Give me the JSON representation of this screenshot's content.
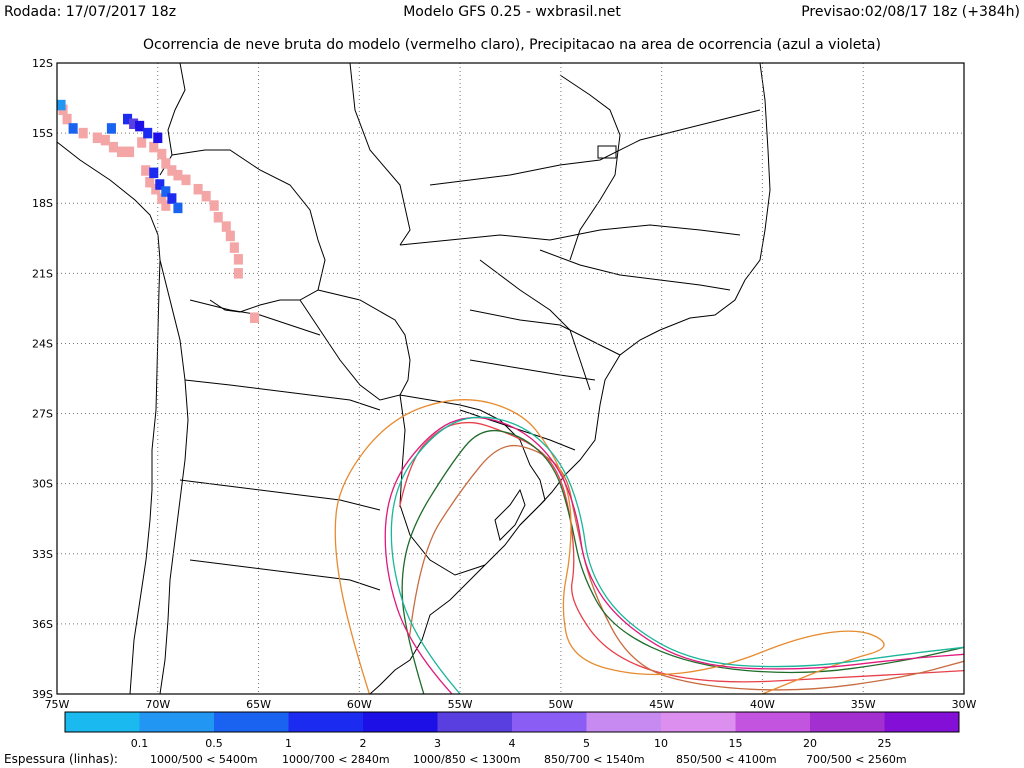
{
  "header": {
    "left": "Rodada: 17/07/2017 18z",
    "center": "Modelo GFS 0.25 - wxbrasil.net",
    "right": "Previsao:02/08/17 18z (+384h)"
  },
  "subtitle": "Ocorrencia de neve bruta do modelo (vermelho claro), Precipitacao na area de ocorrencia (azul a violeta)",
  "chart_data": {
    "type": "heatmap",
    "map": "South America (Southern Cone)",
    "lon_range": [
      -75,
      -30
    ],
    "lat_range": [
      -39,
      -12
    ],
    "lat_ticks": [
      "12S",
      "15S",
      "18S",
      "21S",
      "24S",
      "27S",
      "30S",
      "33S",
      "36S",
      "39S"
    ],
    "lon_ticks": [
      "75W",
      "70W",
      "65W",
      "60W",
      "55W",
      "50W",
      "45W",
      "40W",
      "35W",
      "30W"
    ],
    "grid": true,
    "snow_color": "#f4a6a6",
    "snow_cells": [
      [
        -74.7,
        -14.0
      ],
      [
        -74.5,
        -14.4
      ],
      [
        -73.7,
        -15.0
      ],
      [
        -73.0,
        -15.2
      ],
      [
        -72.6,
        -15.3
      ],
      [
        -72.2,
        -15.6
      ],
      [
        -71.8,
        -15.8
      ],
      [
        -71.4,
        -15.8
      ],
      [
        -70.8,
        -15.4
      ],
      [
        -70.2,
        -15.6
      ],
      [
        -69.8,
        -15.9
      ],
      [
        -69.6,
        -16.3
      ],
      [
        -69.3,
        -16.6
      ],
      [
        -69.0,
        -16.8
      ],
      [
        -68.6,
        -17.0
      ],
      [
        -68.0,
        -17.4
      ],
      [
        -67.6,
        -17.7
      ],
      [
        -67.2,
        -18.1
      ],
      [
        -67.0,
        -18.6
      ],
      [
        -66.6,
        -19.0
      ],
      [
        -66.4,
        -19.4
      ],
      [
        -66.2,
        -19.9
      ],
      [
        -66.0,
        -20.4
      ],
      [
        -66.0,
        -21.0
      ],
      [
        -65.2,
        -22.9
      ],
      [
        -70.6,
        -16.6
      ],
      [
        -70.4,
        -17.1
      ],
      [
        -70.1,
        -17.4
      ],
      [
        -69.8,
        -17.8
      ],
      [
        -69.6,
        -18.1
      ]
    ],
    "precip_cells": [
      {
        "lon": -74.8,
        "lat": -13.8,
        "level": 1
      },
      {
        "lon": -74.2,
        "lat": -14.8,
        "level": 2
      },
      {
        "lon": -72.3,
        "lat": -14.8,
        "level": 2
      },
      {
        "lon": -71.5,
        "lat": -14.4,
        "level": 3
      },
      {
        "lon": -71.2,
        "lat": -14.6,
        "level": 5
      },
      {
        "lon": -70.9,
        "lat": -14.7,
        "level": 4
      },
      {
        "lon": -70.5,
        "lat": -15.0,
        "level": 3
      },
      {
        "lon": -70.0,
        "lat": -15.2,
        "level": 4
      },
      {
        "lon": -70.2,
        "lat": -16.7,
        "level": 3
      },
      {
        "lon": -69.9,
        "lat": -17.2,
        "level": 3
      },
      {
        "lon": -69.6,
        "lat": -17.5,
        "level": 2
      },
      {
        "lon": -69.3,
        "lat": -17.8,
        "level": 3
      },
      {
        "lon": -69.0,
        "lat": -18.2,
        "level": 2
      }
    ],
    "thickness_contours": [
      {
        "label": "1000/500 < 5400m",
        "color": "#e8404a",
        "points": [
          [
            -58,
            -31
          ],
          [
            -57.5,
            -29
          ],
          [
            -56,
            -27.6
          ],
          [
            -54.5,
            -27.3
          ],
          [
            -53,
            -27.7
          ],
          [
            -51,
            -28.5
          ],
          [
            -50,
            -29.7
          ],
          [
            -49.5,
            -31.5
          ],
          [
            -49.3,
            -33.5
          ],
          [
            -49.6,
            -35
          ],
          [
            -47.5,
            -37.5
          ],
          [
            -43,
            -38.6
          ],
          [
            -36,
            -38.3
          ],
          [
            -30,
            -38.0
          ]
        ]
      },
      {
        "label": "1000/700 < 2840m",
        "color": "#c86b40",
        "points": [
          [
            -57.5,
            -36.5
          ],
          [
            -57,
            -33
          ],
          [
            -55,
            -30.3
          ],
          [
            -53,
            -28.2
          ],
          [
            -51,
            -28.6
          ],
          [
            -49.7,
            -29.6
          ],
          [
            -49.3,
            -31.5
          ],
          [
            -48.5,
            -34.5
          ],
          [
            -46.5,
            -37.8
          ],
          [
            -43,
            -38.7
          ],
          [
            -38,
            -38.9
          ],
          [
            -33,
            -38.3
          ],
          [
            -30,
            -37.6
          ]
        ]
      },
      {
        "label": "1000/850 < 1300m",
        "color": "#1f6b2a",
        "points": [
          [
            -56.8,
            -39.0
          ],
          [
            -57.5,
            -37
          ],
          [
            -58,
            -34.5
          ],
          [
            -57.5,
            -32
          ],
          [
            -55.5,
            -29.2
          ],
          [
            -54,
            -27.6
          ],
          [
            -52,
            -27.9
          ],
          [
            -50.3,
            -29.2
          ],
          [
            -49.5,
            -31.5
          ],
          [
            -49.0,
            -33.8
          ],
          [
            -47.5,
            -36.2
          ],
          [
            -43.5,
            -37.8
          ],
          [
            -38,
            -38.2
          ],
          [
            -33,
            -37.6
          ],
          [
            -30,
            -37.0
          ]
        ]
      },
      {
        "label": "850/700 < 1540m",
        "color": "#e88a2e",
        "points": [
          [
            -59.5,
            -39.0
          ],
          [
            -60.6,
            -36
          ],
          [
            -61.3,
            -32.5
          ],
          [
            -61.0,
            -30
          ],
          [
            -58.5,
            -27.2
          ],
          [
            -55,
            -26.2
          ],
          [
            -52,
            -26.9
          ],
          [
            -50.5,
            -28.5
          ],
          [
            -49.5,
            -30.5
          ],
          [
            -49.5,
            -33.0
          ],
          [
            -50,
            -35.2
          ],
          [
            -49.5,
            -37.5
          ],
          [
            -46,
            -38.3
          ],
          [
            -42,
            -37.9
          ],
          [
            -38,
            -36.5
          ],
          [
            -35,
            -36.2
          ],
          [
            -33.5,
            -37.0
          ],
          [
            -36,
            -37.6
          ],
          [
            -40,
            -39.0
          ]
        ]
      },
      {
        "label": "850/500 < 4100m",
        "color": "#e0197d",
        "points": [
          [
            -55.4,
            -39.0
          ],
          [
            -57.5,
            -37
          ],
          [
            -58.8,
            -33.5
          ],
          [
            -58.6,
            -30.2
          ],
          [
            -56.5,
            -27.8
          ],
          [
            -54.5,
            -27.0
          ],
          [
            -52,
            -27.6
          ],
          [
            -50.2,
            -29.1
          ],
          [
            -49.2,
            -31.2
          ],
          [
            -48.8,
            -33.8
          ],
          [
            -47.0,
            -36.0
          ],
          [
            -43.5,
            -37.8
          ],
          [
            -38,
            -38.0
          ],
          [
            -33,
            -37.5
          ],
          [
            -30,
            -37.3
          ]
        ]
      },
      {
        "label": "700/500 < 2560m",
        "color": "#1ab59a",
        "points": [
          [
            -55.0,
            -39.0
          ],
          [
            -57.2,
            -36.8
          ],
          [
            -58.5,
            -33.3
          ],
          [
            -58.3,
            -30.1
          ],
          [
            -56.3,
            -27.8
          ],
          [
            -54.3,
            -27.0
          ],
          [
            -51.8,
            -27.5
          ],
          [
            -50.0,
            -29.0
          ],
          [
            -49.0,
            -31.2
          ],
          [
            -48.6,
            -33.8
          ],
          [
            -46.8,
            -36.0
          ],
          [
            -43.3,
            -37.7
          ],
          [
            -38,
            -37.9
          ],
          [
            -33,
            -37.3
          ],
          [
            -30,
            -37.0
          ]
        ]
      }
    ],
    "colorbar": {
      "label": "Espessura (linhas):",
      "ticks": [
        "0.1",
        "0.5",
        "1",
        "2",
        "3",
        "4",
        "5",
        "10",
        "15",
        "20",
        "25"
      ],
      "colors": [
        "#1ab9ef",
        "#2196f3",
        "#1a63f0",
        "#1c2bf0",
        "#1c10e6",
        "#5a3fe0",
        "#8a5ef5",
        "#c78af0",
        "#dd8ff0",
        "#c254e0",
        "#a32fd0",
        "#8410d8"
      ]
    }
  }
}
